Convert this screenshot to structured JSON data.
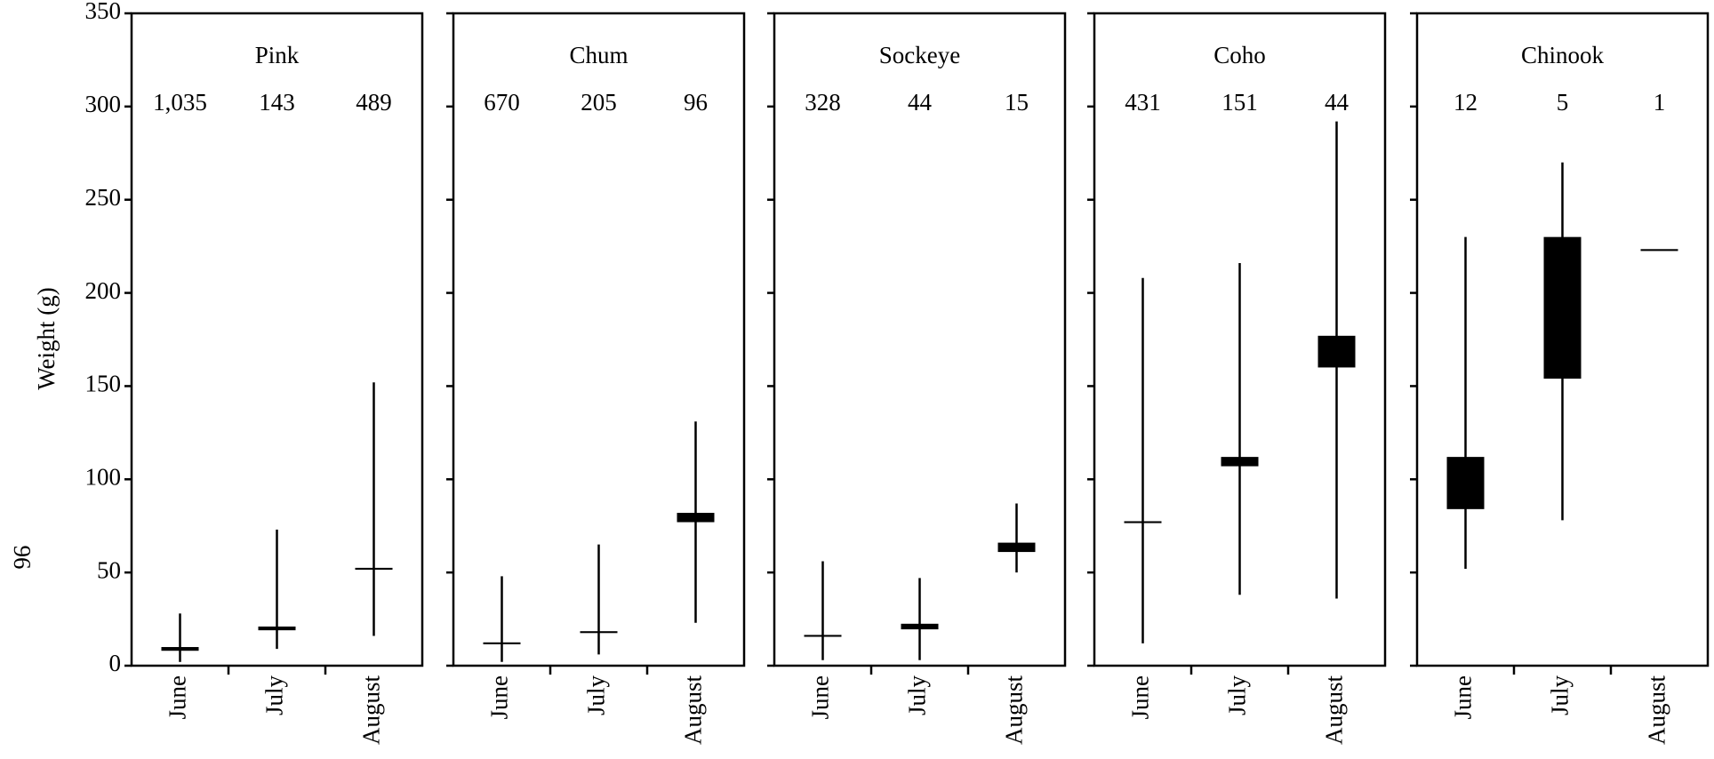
{
  "page_number": "96",
  "chart_data": [
    {
      "type": "range",
      "title": "Pink",
      "ylabel": "Weight (g)",
      "categories": [
        "June",
        "July",
        "August"
      ],
      "counts": [
        1035,
        143,
        489
      ],
      "value_labels": [
        "1,035",
        "143",
        "489"
      ],
      "low": [
        2,
        9,
        16
      ],
      "high": [
        28,
        73,
        152
      ],
      "box_low": [
        8,
        19,
        51.5
      ],
      "box_high": [
        10,
        21,
        52.5
      ],
      "ylim": [
        0,
        350
      ],
      "yticks": [
        0,
        50,
        100,
        150,
        200,
        250,
        300,
        350
      ],
      "show_tick_labels": true
    },
    {
      "type": "range",
      "title": "Chum",
      "categories": [
        "June",
        "July",
        "August"
      ],
      "counts": [
        670,
        205,
        96
      ],
      "low": [
        2,
        6,
        23
      ],
      "high": [
        48,
        65,
        131
      ],
      "box_low": [
        11.5,
        17.5,
        77
      ],
      "box_high": [
        12.5,
        18.5,
        82
      ],
      "ylim": [
        0,
        350
      ],
      "yticks": [
        0,
        50,
        100,
        150,
        200,
        250,
        300,
        350
      ],
      "show_tick_labels": false
    },
    {
      "type": "range",
      "title": "Sockeye",
      "categories": [
        "June",
        "July",
        "August"
      ],
      "counts": [
        328,
        44,
        15
      ],
      "low": [
        3,
        3,
        50
      ],
      "high": [
        56,
        47,
        87
      ],
      "box_low": [
        15.5,
        19.5,
        61
      ],
      "box_high": [
        16.5,
        22.5,
        66
      ],
      "ylim": [
        0,
        350
      ],
      "yticks": [
        0,
        50,
        100,
        150,
        200,
        250,
        300,
        350
      ],
      "show_tick_labels": false
    },
    {
      "type": "range",
      "title": "Coho",
      "categories": [
        "June",
        "July",
        "August"
      ],
      "counts": [
        431,
        151,
        44
      ],
      "low": [
        12,
        38,
        36
      ],
      "high": [
        208,
        216,
        292
      ],
      "box_low": [
        76.5,
        107,
        160
      ],
      "box_high": [
        77.5,
        112,
        177
      ],
      "ylim": [
        0,
        350
      ],
      "yticks": [
        0,
        50,
        100,
        150,
        200,
        250,
        300,
        350
      ],
      "show_tick_labels": false
    },
    {
      "type": "range",
      "title": "Chinook",
      "categories": [
        "June",
        "July",
        "August"
      ],
      "counts": [
        12,
        5,
        1
      ],
      "low": [
        52,
        78,
        null
      ],
      "high": [
        230,
        270,
        null
      ],
      "box_low": [
        84,
        154,
        222.5
      ],
      "box_high": [
        112,
        230,
        223.5
      ],
      "ylim": [
        0,
        350
      ],
      "yticks": [
        0,
        50,
        100,
        150,
        200,
        250,
        300,
        350
      ],
      "show_tick_labels": false
    }
  ]
}
